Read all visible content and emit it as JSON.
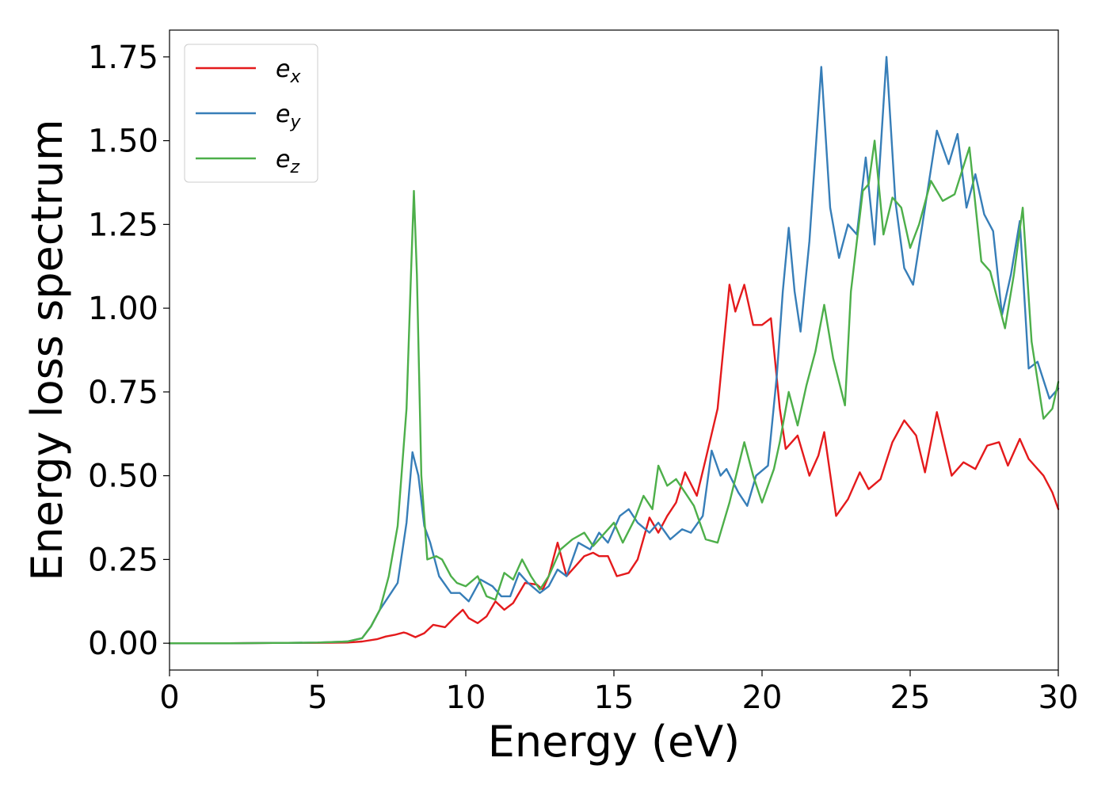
{
  "chart_data": {
    "type": "line",
    "title": "",
    "xlabel": "Energy (eV)",
    "ylabel": "Energy loss spectrum",
    "xlim": [
      0,
      30
    ],
    "ylim": [
      -0.08,
      1.83
    ],
    "xticks": [
      0,
      5,
      10,
      15,
      20,
      25,
      30
    ],
    "yticks": [
      0.0,
      0.25,
      0.5,
      0.75,
      1.0,
      1.25,
      1.5,
      1.75
    ],
    "grid": false,
    "legend_position": "top-left",
    "series": [
      {
        "name": "e",
        "subscript": "x",
        "color": "#e41a1c",
        "points": [
          [
            0,
            0
          ],
          [
            2,
            0
          ],
          [
            4,
            0.001
          ],
          [
            5,
            0.001
          ],
          [
            6,
            0.002
          ],
          [
            6.5,
            0.005
          ],
          [
            7,
            0.012
          ],
          [
            7.3,
            0.02
          ],
          [
            7.6,
            0.025
          ],
          [
            7.9,
            0.032
          ],
          [
            8.0,
            0.03
          ],
          [
            8.3,
            0.018
          ],
          [
            8.6,
            0.03
          ],
          [
            8.9,
            0.055
          ],
          [
            9.3,
            0.048
          ],
          [
            9.6,
            0.075
          ],
          [
            9.9,
            0.1
          ],
          [
            10.1,
            0.075
          ],
          [
            10.4,
            0.06
          ],
          [
            10.7,
            0.08
          ],
          [
            11.0,
            0.125
          ],
          [
            11.3,
            0.1
          ],
          [
            11.6,
            0.12
          ],
          [
            12.0,
            0.18
          ],
          [
            12.4,
            0.175
          ],
          [
            12.6,
            0.16
          ],
          [
            12.8,
            0.2
          ],
          [
            13.1,
            0.3
          ],
          [
            13.4,
            0.2
          ],
          [
            13.7,
            0.23
          ],
          [
            14.0,
            0.26
          ],
          [
            14.3,
            0.27
          ],
          [
            14.5,
            0.26
          ],
          [
            14.8,
            0.26
          ],
          [
            15.1,
            0.2
          ],
          [
            15.5,
            0.21
          ],
          [
            15.8,
            0.25
          ],
          [
            16.2,
            0.375
          ],
          [
            16.5,
            0.33
          ],
          [
            16.8,
            0.38
          ],
          [
            17.1,
            0.42
          ],
          [
            17.4,
            0.51
          ],
          [
            17.8,
            0.44
          ],
          [
            18.1,
            0.55
          ],
          [
            18.5,
            0.7
          ],
          [
            18.9,
            1.07
          ],
          [
            19.1,
            0.99
          ],
          [
            19.4,
            1.07
          ],
          [
            19.7,
            0.95
          ],
          [
            20.0,
            0.95
          ],
          [
            20.3,
            0.97
          ],
          [
            20.6,
            0.7
          ],
          [
            20.8,
            0.58
          ],
          [
            21.2,
            0.62
          ],
          [
            21.6,
            0.5
          ],
          [
            21.9,
            0.56
          ],
          [
            22.1,
            0.63
          ],
          [
            22.5,
            0.38
          ],
          [
            22.9,
            0.43
          ],
          [
            23.3,
            0.51
          ],
          [
            23.6,
            0.46
          ],
          [
            24.0,
            0.49
          ],
          [
            24.4,
            0.6
          ],
          [
            24.8,
            0.665
          ],
          [
            25.2,
            0.62
          ],
          [
            25.5,
            0.51
          ],
          [
            25.9,
            0.69
          ],
          [
            26.4,
            0.5
          ],
          [
            26.8,
            0.54
          ],
          [
            27.2,
            0.52
          ],
          [
            27.6,
            0.59
          ],
          [
            28.0,
            0.6
          ],
          [
            28.3,
            0.53
          ],
          [
            28.7,
            0.61
          ],
          [
            29.0,
            0.55
          ],
          [
            29.5,
            0.5
          ],
          [
            29.8,
            0.45
          ],
          [
            30,
            0.4
          ]
        ]
      },
      {
        "name": "e",
        "subscript": "y",
        "color": "#377eb8",
        "points": [
          [
            0,
            0
          ],
          [
            2,
            0
          ],
          [
            4,
            0.001
          ],
          [
            5,
            0.002
          ],
          [
            6,
            0.005
          ],
          [
            6.5,
            0.015
          ],
          [
            6.8,
            0.05
          ],
          [
            7.1,
            0.1
          ],
          [
            7.4,
            0.14
          ],
          [
            7.7,
            0.18
          ],
          [
            8.0,
            0.36
          ],
          [
            8.2,
            0.57
          ],
          [
            8.4,
            0.5
          ],
          [
            8.6,
            0.35
          ],
          [
            8.8,
            0.3
          ],
          [
            9.1,
            0.2
          ],
          [
            9.5,
            0.15
          ],
          [
            9.8,
            0.15
          ],
          [
            10.1,
            0.125
          ],
          [
            10.5,
            0.19
          ],
          [
            10.9,
            0.17
          ],
          [
            11.2,
            0.14
          ],
          [
            11.5,
            0.14
          ],
          [
            11.8,
            0.21
          ],
          [
            12.1,
            0.18
          ],
          [
            12.5,
            0.15
          ],
          [
            12.8,
            0.17
          ],
          [
            13.1,
            0.22
          ],
          [
            13.4,
            0.2
          ],
          [
            13.8,
            0.3
          ],
          [
            14.2,
            0.28
          ],
          [
            14.5,
            0.33
          ],
          [
            14.8,
            0.3
          ],
          [
            15.2,
            0.38
          ],
          [
            15.5,
            0.4
          ],
          [
            15.8,
            0.36
          ],
          [
            16.2,
            0.33
          ],
          [
            16.5,
            0.36
          ],
          [
            16.9,
            0.31
          ],
          [
            17.3,
            0.34
          ],
          [
            17.6,
            0.33
          ],
          [
            18.0,
            0.38
          ],
          [
            18.3,
            0.575
          ],
          [
            18.6,
            0.5
          ],
          [
            18.8,
            0.52
          ],
          [
            19.2,
            0.45
          ],
          [
            19.5,
            0.41
          ],
          [
            19.8,
            0.5
          ],
          [
            20.2,
            0.53
          ],
          [
            20.5,
            0.8
          ],
          [
            20.7,
            1.05
          ],
          [
            20.9,
            1.24
          ],
          [
            21.1,
            1.05
          ],
          [
            21.3,
            0.93
          ],
          [
            21.6,
            1.2
          ],
          [
            22.0,
            1.72
          ],
          [
            22.3,
            1.3
          ],
          [
            22.6,
            1.15
          ],
          [
            22.9,
            1.25
          ],
          [
            23.2,
            1.22
          ],
          [
            23.5,
            1.45
          ],
          [
            23.8,
            1.19
          ],
          [
            24.2,
            1.75
          ],
          [
            24.5,
            1.32
          ],
          [
            24.8,
            1.12
          ],
          [
            25.1,
            1.07
          ],
          [
            25.5,
            1.3
          ],
          [
            25.9,
            1.53
          ],
          [
            26.3,
            1.43
          ],
          [
            26.6,
            1.52
          ],
          [
            26.9,
            1.3
          ],
          [
            27.2,
            1.4
          ],
          [
            27.5,
            1.28
          ],
          [
            27.8,
            1.23
          ],
          [
            28.1,
            0.98
          ],
          [
            28.4,
            1.1
          ],
          [
            28.7,
            1.26
          ],
          [
            29.0,
            0.82
          ],
          [
            29.3,
            0.84
          ],
          [
            29.7,
            0.73
          ],
          [
            30,
            0.76
          ]
        ]
      },
      {
        "name": "e",
        "subscript": "z",
        "color": "#4daf4a",
        "points": [
          [
            0,
            0
          ],
          [
            2,
            0
          ],
          [
            4,
            0.001
          ],
          [
            5,
            0.002
          ],
          [
            6,
            0.005
          ],
          [
            6.5,
            0.015
          ],
          [
            6.8,
            0.05
          ],
          [
            7.1,
            0.1
          ],
          [
            7.4,
            0.2
          ],
          [
            7.7,
            0.35
          ],
          [
            8.0,
            0.7
          ],
          [
            8.15,
            1.1
          ],
          [
            8.25,
            1.35
          ],
          [
            8.35,
            1.1
          ],
          [
            8.5,
            0.5
          ],
          [
            8.7,
            0.25
          ],
          [
            9.0,
            0.26
          ],
          [
            9.2,
            0.25
          ],
          [
            9.5,
            0.2
          ],
          [
            9.7,
            0.18
          ],
          [
            10.0,
            0.17
          ],
          [
            10.4,
            0.2
          ],
          [
            10.7,
            0.14
          ],
          [
            11.0,
            0.13
          ],
          [
            11.3,
            0.21
          ],
          [
            11.6,
            0.19
          ],
          [
            11.9,
            0.25
          ],
          [
            12.2,
            0.2
          ],
          [
            12.5,
            0.16
          ],
          [
            12.8,
            0.2
          ],
          [
            13.2,
            0.28
          ],
          [
            13.6,
            0.31
          ],
          [
            14.0,
            0.33
          ],
          [
            14.3,
            0.29
          ],
          [
            14.7,
            0.33
          ],
          [
            15.0,
            0.36
          ],
          [
            15.3,
            0.3
          ],
          [
            15.7,
            0.37
          ],
          [
            16.0,
            0.44
          ],
          [
            16.3,
            0.4
          ],
          [
            16.5,
            0.53
          ],
          [
            16.8,
            0.47
          ],
          [
            17.1,
            0.49
          ],
          [
            17.4,
            0.45
          ],
          [
            17.7,
            0.41
          ],
          [
            18.1,
            0.31
          ],
          [
            18.5,
            0.3
          ],
          [
            18.9,
            0.42
          ],
          [
            19.4,
            0.6
          ],
          [
            19.7,
            0.5
          ],
          [
            20.0,
            0.42
          ],
          [
            20.4,
            0.52
          ],
          [
            20.6,
            0.6
          ],
          [
            20.9,
            0.75
          ],
          [
            21.2,
            0.65
          ],
          [
            21.5,
            0.77
          ],
          [
            21.8,
            0.87
          ],
          [
            22.1,
            1.01
          ],
          [
            22.4,
            0.85
          ],
          [
            22.8,
            0.71
          ],
          [
            23.0,
            1.05
          ],
          [
            23.4,
            1.35
          ],
          [
            23.6,
            1.37
          ],
          [
            23.8,
            1.5
          ],
          [
            24.1,
            1.22
          ],
          [
            24.4,
            1.33
          ],
          [
            24.7,
            1.3
          ],
          [
            25.0,
            1.18
          ],
          [
            25.3,
            1.25
          ],
          [
            25.7,
            1.38
          ],
          [
            26.1,
            1.32
          ],
          [
            26.5,
            1.34
          ],
          [
            27.0,
            1.48
          ],
          [
            27.4,
            1.14
          ],
          [
            27.7,
            1.11
          ],
          [
            28.2,
            0.94
          ],
          [
            28.5,
            1.1
          ],
          [
            28.8,
            1.3
          ],
          [
            29.1,
            0.9
          ],
          [
            29.5,
            0.67
          ],
          [
            29.8,
            0.7
          ],
          [
            30,
            0.78
          ]
        ]
      }
    ]
  }
}
